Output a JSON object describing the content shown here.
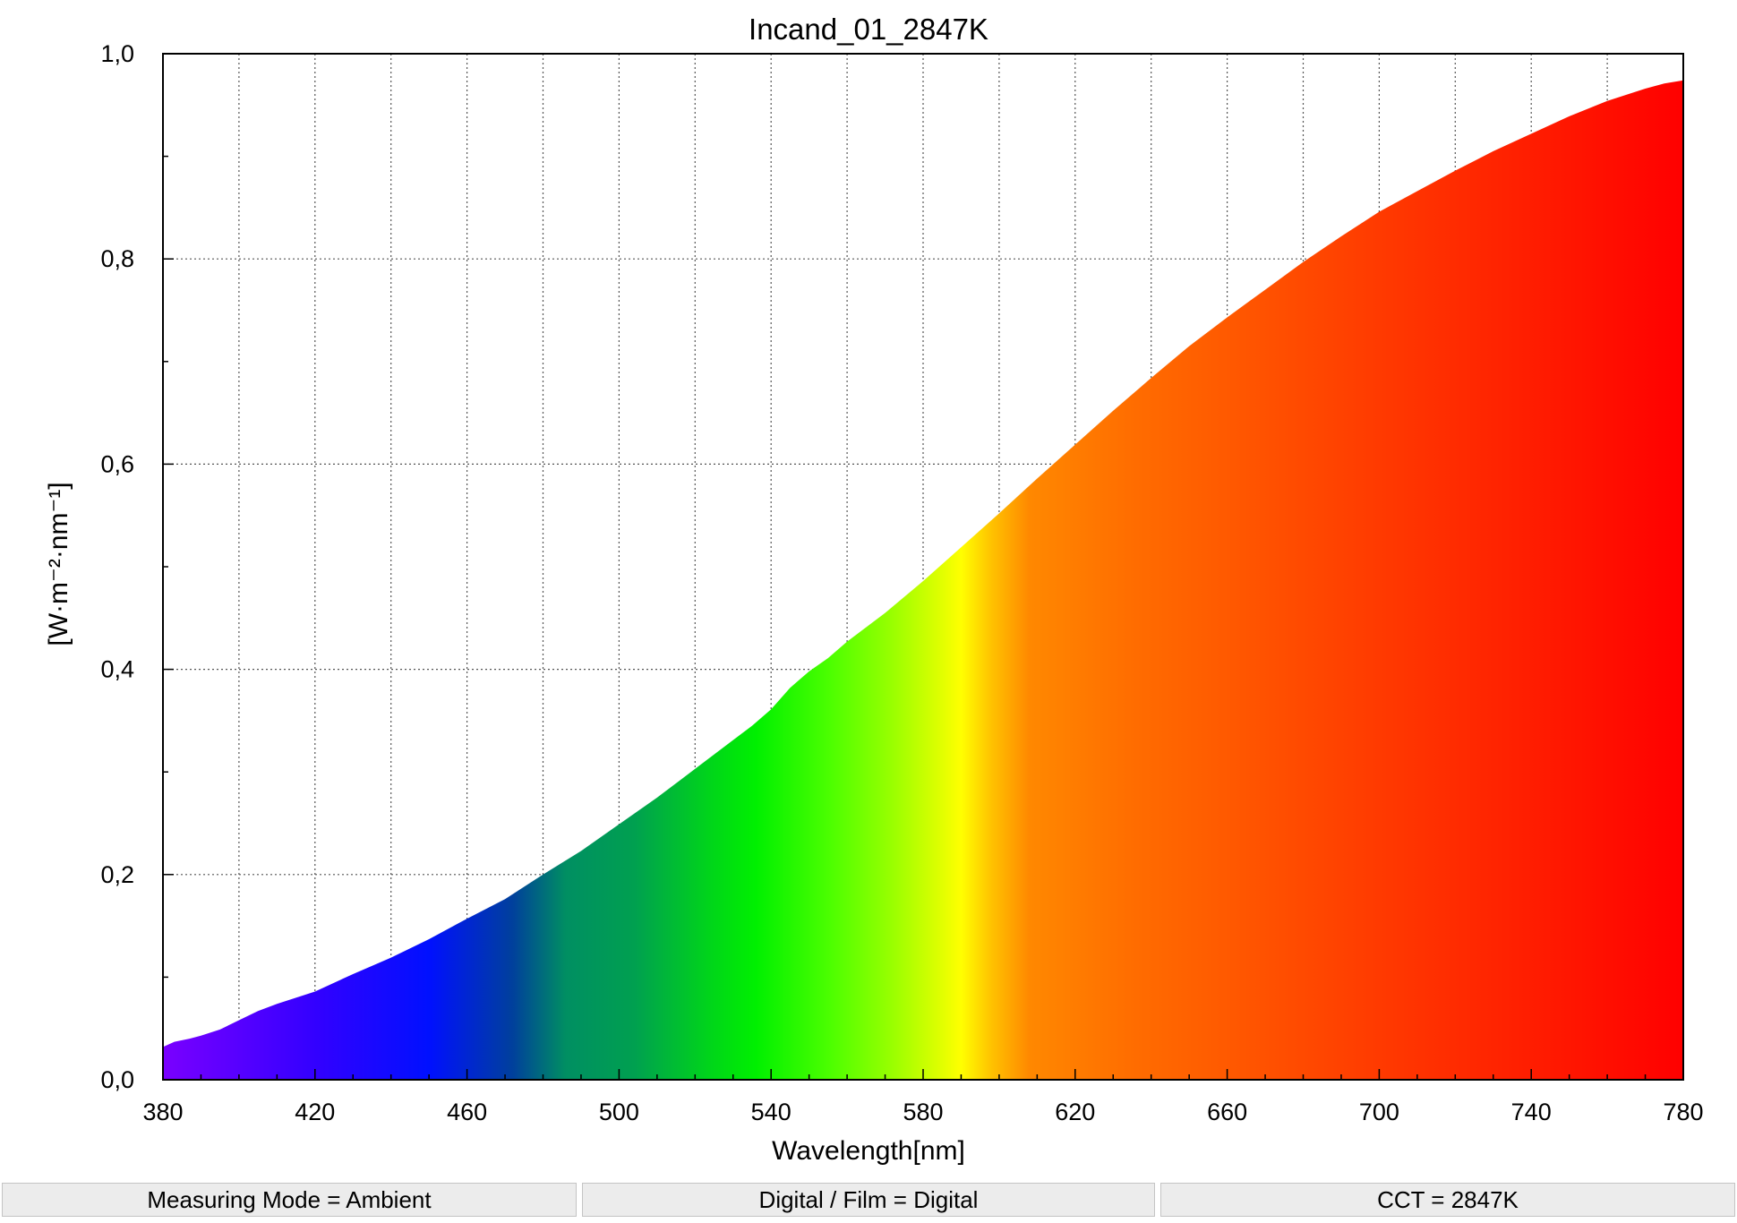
{
  "chart_data": {
    "type": "area",
    "title": "Incand_01_2847K",
    "xlabel": "Wavelength[nm]",
    "ylabel": "[W·m⁻²·nm⁻¹]",
    "xlim": [
      380,
      780
    ],
    "ylim": [
      0,
      1.0
    ],
    "x_ticks": [
      "380",
      "420",
      "460",
      "500",
      "540",
      "580",
      "620",
      "660",
      "700",
      "740",
      "780"
    ],
    "y_ticks": [
      "0,0",
      "0,2",
      "0,4",
      "0,6",
      "0,8",
      "1,0"
    ],
    "grid": true,
    "fill": "visible-spectrum gradient",
    "series": [
      {
        "x": [
          380,
          383,
          387,
          390,
          395,
          400,
          405,
          410,
          420,
          430,
          440,
          450,
          460,
          470,
          480,
          490,
          500,
          510,
          520,
          530,
          535,
          540,
          545,
          550,
          555,
          560,
          570,
          580,
          590,
          600,
          610,
          620,
          630,
          640,
          650,
          660,
          670,
          680,
          690,
          700,
          710,
          720,
          730,
          740,
          750,
          760,
          770,
          775,
          780
        ],
        "values": [
          0.032,
          0.037,
          0.04,
          0.043,
          0.049,
          0.058,
          0.067,
          0.074,
          0.086,
          0.103,
          0.119,
          0.137,
          0.157,
          0.176,
          0.2,
          0.223,
          0.249,
          0.275,
          0.303,
          0.331,
          0.345,
          0.361,
          0.382,
          0.398,
          0.411,
          0.427,
          0.455,
          0.486,
          0.519,
          0.552,
          0.586,
          0.619,
          0.652,
          0.684,
          0.715,
          0.743,
          0.77,
          0.797,
          0.822,
          0.846,
          0.866,
          0.886,
          0.905,
          0.922,
          0.939,
          0.954,
          0.966,
          0.971,
          0.974
        ]
      }
    ]
  },
  "status": {
    "measuring_mode": "Measuring Mode = Ambient",
    "digital_film": "Digital / Film = Digital",
    "cct": "CCT = 2847K"
  }
}
